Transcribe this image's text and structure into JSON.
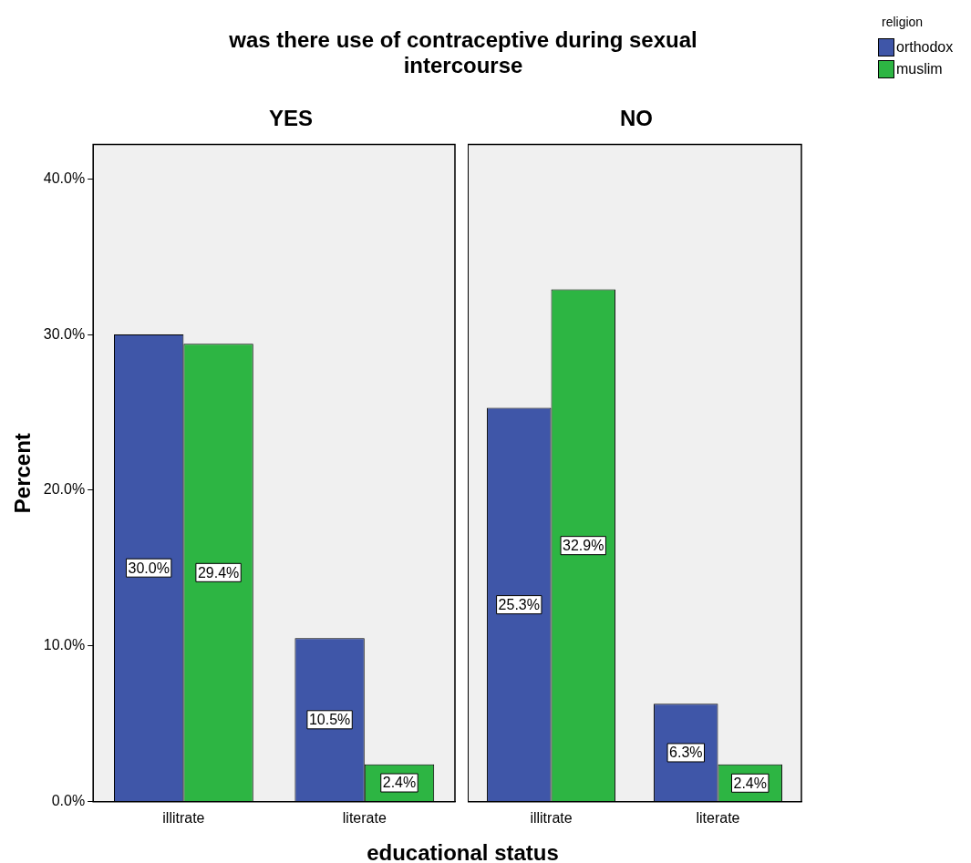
{
  "chart_data": [
    {
      "type": "bar",
      "title": "was there use of contraceptive during sexual intercourse",
      "subtitle": "YES",
      "xlabel": "educational status",
      "ylabel": "Percent",
      "legend_title": "religion",
      "legend": "top right",
      "grid": false,
      "categories": [
        "illitrate",
        "literate"
      ],
      "series": [
        {
          "name": "orthodox",
          "color": "#3f56a8",
          "values": [
            30.0,
            10.5
          ],
          "value_labels": [
            "30.0%",
            "10.5%"
          ]
        },
        {
          "name": "muslim",
          "color": "#2db543",
          "values": [
            29.4,
            2.4
          ],
          "value_labels": [
            "29.4%",
            "2.4%"
          ]
        }
      ],
      "ylim": [
        0,
        42.2
      ],
      "yticks": [
        {
          "value": 0,
          "label": "0.0%"
        },
        {
          "value": 10,
          "label": "10.0%"
        },
        {
          "value": 20,
          "label": "20.0%"
        },
        {
          "value": 30,
          "label": "30.0%"
        },
        {
          "value": 40,
          "label": "40.0%"
        }
      ]
    },
    {
      "type": "bar",
      "subtitle": "NO",
      "grid": false,
      "tick_labels": "x",
      "categories": [
        "illitrate",
        "literate"
      ],
      "series": [
        {
          "color": "#3f56a8",
          "values": [
            25.3,
            6.3
          ],
          "value_labels": [
            "25.3%",
            "6.3%"
          ]
        },
        {
          "color": "#2db543",
          "values": [
            32.9,
            2.4
          ],
          "value_labels": [
            "32.9%",
            "2.4%"
          ]
        }
      ],
      "ylim": [
        0,
        42.2
      ]
    }
  ]
}
